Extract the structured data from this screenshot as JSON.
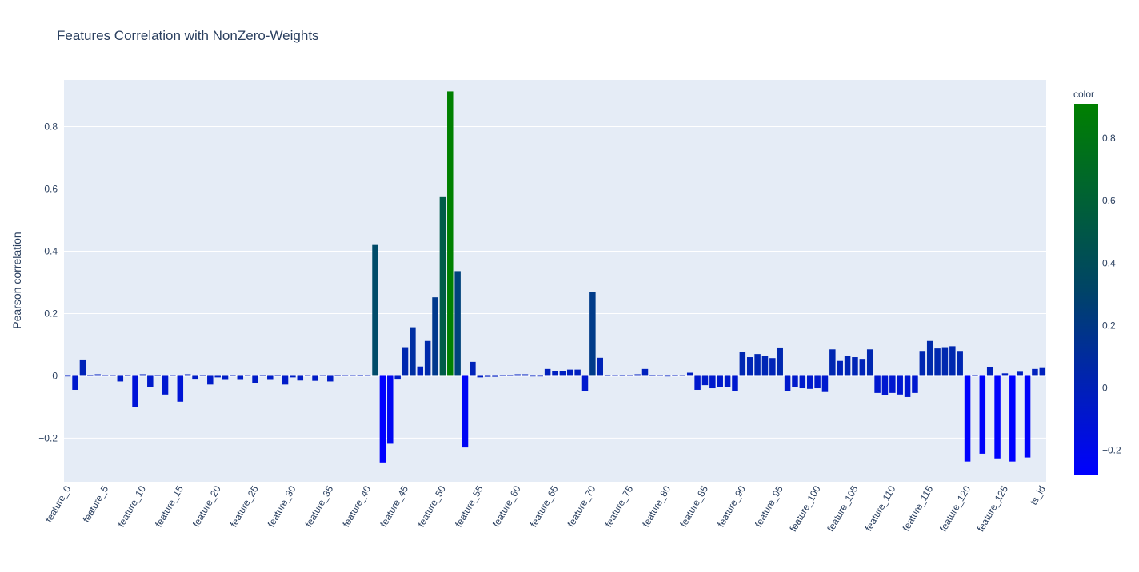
{
  "chart_data": {
    "type": "bar",
    "title": "Features Correlation with NonZero-Weights",
    "xlabel": "",
    "ylabel": "Pearson correlation",
    "ylim": [
      -0.34,
      0.95
    ],
    "yticks": [
      -0.2,
      0,
      0.2,
      0.4,
      0.6,
      0.8
    ],
    "ytick_labels": [
      "−0.2",
      "0",
      "0.2",
      "0.4",
      "0.6",
      "0.8"
    ],
    "xtick_labels": [
      "feature_0",
      "feature_5",
      "feature_10",
      "feature_15",
      "feature_20",
      "feature_25",
      "feature_30",
      "feature_35",
      "feature_40",
      "feature_45",
      "feature_50",
      "feature_55",
      "feature_60",
      "feature_65",
      "feature_70",
      "feature_75",
      "feature_80",
      "feature_85",
      "feature_90",
      "feature_95",
      "feature_100",
      "feature_105",
      "feature_110",
      "feature_115",
      "feature_120",
      "feature_125",
      "ts_id"
    ],
    "xtick_every": 5,
    "grid": true,
    "colorbar": {
      "title": "color",
      "range": [
        -0.28,
        0.91
      ],
      "ticks": [
        -0.2,
        0,
        0.2,
        0.4,
        0.6,
        0.8
      ],
      "tick_labels": [
        "−0.2",
        "0",
        "0.2",
        "0.4",
        "0.6",
        "0.8"
      ],
      "colorscale": [
        "#0000ff",
        "#008000"
      ]
    },
    "categories": [
      "feature_0",
      "feature_1",
      "feature_2",
      "feature_3",
      "feature_4",
      "feature_5",
      "feature_6",
      "feature_7",
      "feature_8",
      "feature_9",
      "feature_10",
      "feature_11",
      "feature_12",
      "feature_13",
      "feature_14",
      "feature_15",
      "feature_16",
      "feature_17",
      "feature_18",
      "feature_19",
      "feature_20",
      "feature_21",
      "feature_22",
      "feature_23",
      "feature_24",
      "feature_25",
      "feature_26",
      "feature_27",
      "feature_28",
      "feature_29",
      "feature_30",
      "feature_31",
      "feature_32",
      "feature_33",
      "feature_34",
      "feature_35",
      "feature_36",
      "feature_37",
      "feature_38",
      "feature_39",
      "feature_40",
      "feature_41",
      "feature_42",
      "feature_43",
      "feature_44",
      "feature_45",
      "feature_46",
      "feature_47",
      "feature_48",
      "feature_49",
      "feature_50",
      "feature_51",
      "feature_52",
      "feature_53",
      "feature_54",
      "feature_55",
      "feature_56",
      "feature_57",
      "feature_58",
      "feature_59",
      "feature_60",
      "feature_61",
      "feature_62",
      "feature_63",
      "feature_64",
      "feature_65",
      "feature_66",
      "feature_67",
      "feature_68",
      "feature_69",
      "feature_70",
      "feature_71",
      "feature_72",
      "feature_73",
      "feature_74",
      "feature_75",
      "feature_76",
      "feature_77",
      "feature_78",
      "feature_79",
      "feature_80",
      "feature_81",
      "feature_82",
      "feature_83",
      "feature_84",
      "feature_85",
      "feature_86",
      "feature_87",
      "feature_88",
      "feature_89",
      "feature_90",
      "feature_91",
      "feature_92",
      "feature_93",
      "feature_94",
      "feature_95",
      "feature_96",
      "feature_97",
      "feature_98",
      "feature_99",
      "feature_100",
      "feature_101",
      "feature_102",
      "feature_103",
      "feature_104",
      "feature_105",
      "feature_106",
      "feature_107",
      "feature_108",
      "feature_109",
      "feature_110",
      "feature_111",
      "feature_112",
      "feature_113",
      "feature_114",
      "feature_115",
      "feature_116",
      "feature_117",
      "feature_118",
      "feature_119",
      "feature_120",
      "feature_121",
      "feature_122",
      "feature_123",
      "feature_124",
      "feature_125",
      "feature_126",
      "feature_127",
      "feature_128",
      "feature_129",
      "ts_id"
    ],
    "values": [
      -0.002,
      -0.045,
      0.05,
      0.0,
      0.005,
      0.002,
      0.002,
      -0.018,
      0.0,
      -0.1,
      0.005,
      -0.035,
      0.0,
      -0.06,
      0.002,
      -0.083,
      0.005,
      -0.012,
      0.0,
      -0.028,
      -0.005,
      -0.013,
      0.0,
      -0.013,
      0.003,
      -0.022,
      0.0,
      -0.013,
      0.0,
      -0.028,
      -0.005,
      -0.015,
      0.003,
      -0.016,
      0.003,
      -0.018,
      0.0,
      0.002,
      0.002,
      0.0,
      0.003,
      0.42,
      -0.278,
      -0.218,
      -0.012,
      0.092,
      0.156,
      0.03,
      0.112,
      0.252,
      0.576,
      0.913,
      0.336,
      -0.23,
      0.045,
      -0.005,
      -0.003,
      -0.003,
      0.0,
      0.0,
      0.005,
      0.005,
      -0.002,
      -0.002,
      0.022,
      0.015,
      0.016,
      0.02,
      0.02,
      -0.05,
      0.27,
      0.058,
      0.0,
      0.003,
      0.0,
      0.002,
      0.005,
      0.022,
      0.0,
      0.003,
      -0.002,
      0.0,
      0.003,
      0.01,
      -0.045,
      -0.03,
      -0.04,
      -0.035,
      -0.035,
      -0.05,
      0.078,
      0.06,
      0.07,
      0.065,
      0.057,
      0.091,
      -0.048,
      -0.035,
      -0.04,
      -0.042,
      -0.04,
      -0.052,
      0.085,
      0.048,
      0.065,
      0.06,
      0.052,
      0.085,
      -0.055,
      -0.062,
      -0.055,
      -0.06,
      -0.068,
      -0.055,
      0.08,
      0.112,
      0.088,
      0.092,
      0.095,
      0.08,
      -0.275,
      0.0,
      -0.25,
      0.027,
      -0.265,
      0.008,
      -0.275,
      0.013,
      -0.262,
      0.022,
      0.025
    ]
  }
}
